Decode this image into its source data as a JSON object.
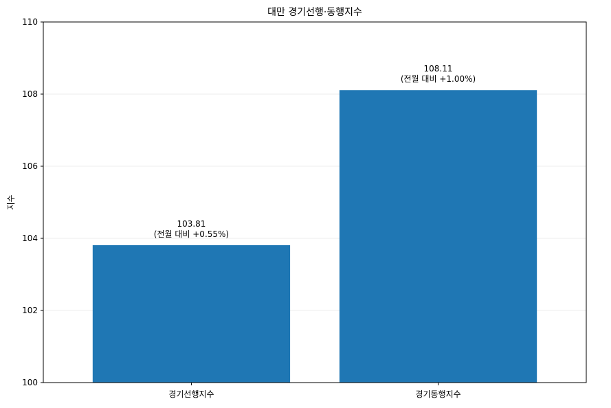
{
  "chart_data": {
    "type": "bar",
    "title": "대만 경기선행·동행지수",
    "xlabel": "",
    "ylabel": "지수",
    "categories": [
      "경기선행지수",
      "경기동행지수"
    ],
    "values": [
      103.81,
      108.11
    ],
    "value_labels": [
      "103.81",
      "108.11"
    ],
    "change_labels": [
      "(전월 대비 +0.55%)",
      "(전월 대비 +1.00%)"
    ],
    "ylim": [
      100,
      110
    ],
    "yticks": [
      100,
      102,
      104,
      106,
      108,
      110
    ],
    "ytick_labels": [
      "100",
      "102",
      "104",
      "106",
      "108",
      "110"
    ],
    "grid": "y-major",
    "legend": "none"
  },
  "colors": {
    "bar": "#1f77b4",
    "grid": "#e6e6e6",
    "axis": "#000000",
    "text": "#000000",
    "background": "#ffffff"
  }
}
